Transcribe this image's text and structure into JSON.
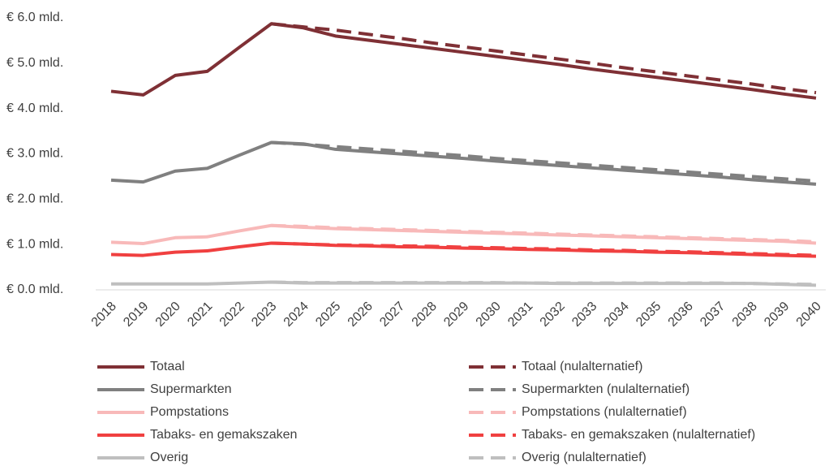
{
  "chart_data": {
    "type": "line",
    "categories": [
      "2018",
      "2019",
      "2020",
      "2021",
      "2022",
      "2023",
      "2024",
      "2025",
      "2026",
      "2027",
      "2028",
      "2029",
      "2030",
      "2031",
      "2032",
      "2033",
      "2034",
      "2035",
      "2036",
      "2037",
      "2038",
      "2039",
      "2040"
    ],
    "ylim": [
      0,
      6
    ],
    "yticks": [
      {
        "value": 0,
        "label": "€ 0.0 mld."
      },
      {
        "value": 1,
        "label": "€ 1.0 mld."
      },
      {
        "value": 2,
        "label": "€ 2.0 mld."
      },
      {
        "value": 3,
        "label": "€ 3.0 mld."
      },
      {
        "value": 4,
        "label": "€ 4.0 mld."
      },
      {
        "value": 5,
        "label": "€ 5.0 mld."
      },
      {
        "value": 6,
        "label": "€ 6.0 mld."
      }
    ],
    "grid": false,
    "legend": "bottom",
    "series": [
      {
        "name": "Totaal",
        "color": "#7f3035",
        "dashed": false,
        "values": [
          4.38,
          4.3,
          4.73,
          4.82,
          5.35,
          5.87,
          5.78,
          5.6,
          5.51,
          5.42,
          5.33,
          5.24,
          5.15,
          5.06,
          4.97,
          4.87,
          4.78,
          4.69,
          4.6,
          4.51,
          4.42,
          4.32,
          4.23
        ]
      },
      {
        "name": "Totaal (nulalternatief)",
        "color": "#7f3035",
        "dashed": true,
        "values": [
          null,
          null,
          null,
          null,
          null,
          5.87,
          5.8,
          5.73,
          5.64,
          5.55,
          5.45,
          5.36,
          5.27,
          5.18,
          5.09,
          5.0,
          4.9,
          4.81,
          4.72,
          4.63,
          4.54,
          4.44,
          4.35
        ]
      },
      {
        "name": "Supermarkten",
        "color": "#808080",
        "dashed": false,
        "values": [
          2.42,
          2.38,
          2.62,
          2.68,
          2.97,
          3.25,
          3.22,
          3.1,
          3.05,
          3.0,
          2.95,
          2.9,
          2.84,
          2.79,
          2.74,
          2.69,
          2.64,
          2.59,
          2.54,
          2.49,
          2.43,
          2.38,
          2.33
        ]
      },
      {
        "name": "Supermarkten (nulalternatief)",
        "color": "#808080",
        "dashed": true,
        "values": [
          null,
          null,
          null,
          null,
          null,
          3.25,
          3.21,
          3.16,
          3.11,
          3.06,
          3.01,
          2.96,
          2.9,
          2.85,
          2.8,
          2.75,
          2.7,
          2.65,
          2.6,
          2.55,
          2.5,
          2.45,
          2.4
        ]
      },
      {
        "name": "Pompstations",
        "color": "#f8b9b9",
        "dashed": false,
        "values": [
          1.05,
          1.02,
          1.15,
          1.17,
          1.3,
          1.42,
          1.38,
          1.35,
          1.33,
          1.31,
          1.29,
          1.27,
          1.25,
          1.23,
          1.21,
          1.19,
          1.17,
          1.15,
          1.13,
          1.11,
          1.09,
          1.07,
          1.03
        ]
      },
      {
        "name": "Pompstations (nulalternatief)",
        "color": "#f8b9b9",
        "dashed": true,
        "values": [
          null,
          null,
          null,
          null,
          null,
          1.42,
          1.4,
          1.37,
          1.35,
          1.33,
          1.31,
          1.29,
          1.27,
          1.25,
          1.23,
          1.21,
          1.19,
          1.17,
          1.15,
          1.13,
          1.11,
          1.09,
          1.06
        ]
      },
      {
        "name": "Tabaks- en gemakszaken",
        "color": "#f04040",
        "dashed": false,
        "values": [
          0.78,
          0.76,
          0.83,
          0.86,
          0.95,
          1.03,
          1.01,
          0.98,
          0.97,
          0.95,
          0.94,
          0.92,
          0.91,
          0.89,
          0.88,
          0.86,
          0.85,
          0.83,
          0.82,
          0.8,
          0.78,
          0.76,
          0.74
        ]
      },
      {
        "name": "Tabaks- en gemakszaken (nulalternatief)",
        "color": "#f04040",
        "dashed": true,
        "values": [
          null,
          null,
          null,
          null,
          null,
          1.03,
          1.01,
          0.99,
          0.98,
          0.97,
          0.96,
          0.94,
          0.93,
          0.91,
          0.9,
          0.88,
          0.87,
          0.85,
          0.84,
          0.82,
          0.8,
          0.78,
          0.76
        ]
      },
      {
        "name": "Overig",
        "color": "#bfbfbf",
        "dashed": false,
        "values": [
          0.13,
          0.13,
          0.13,
          0.13,
          0.15,
          0.17,
          0.15,
          0.15,
          0.15,
          0.15,
          0.15,
          0.15,
          0.15,
          0.15,
          0.14,
          0.14,
          0.14,
          0.14,
          0.14,
          0.14,
          0.14,
          0.12,
          0.1
        ]
      },
      {
        "name": "Overig (nulalternatief)",
        "color": "#bfbfbf",
        "dashed": true,
        "values": [
          null,
          null,
          null,
          null,
          null,
          0.17,
          0.16,
          0.16,
          0.16,
          0.16,
          0.16,
          0.16,
          0.16,
          0.15,
          0.15,
          0.15,
          0.15,
          0.15,
          0.15,
          0.15,
          0.14,
          0.13,
          0.12
        ]
      }
    ]
  }
}
